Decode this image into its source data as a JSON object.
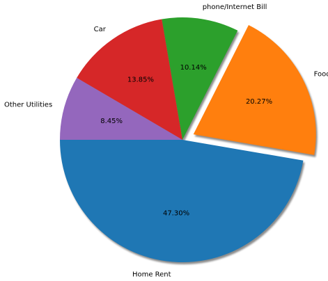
{
  "chart_data": {
    "type": "pie",
    "title": "",
    "start_angle_deg": 180,
    "direction": "counterclockwise",
    "shadow": true,
    "slices": [
      {
        "label": "Home Rent",
        "value": 47.3,
        "pct_label": "47.30%",
        "color": "#1f77b4",
        "explode": 0
      },
      {
        "label": "Food",
        "value": 20.27,
        "pct_label": "20.27%",
        "color": "#ff7f0e",
        "explode": 0.1
      },
      {
        "label": "phone/Internet Bill",
        "value": 10.14,
        "pct_label": "10.14%",
        "color": "#2ca02c",
        "explode": 0
      },
      {
        "label": "Car",
        "value": 13.85,
        "pct_label": "13.85%",
        "color": "#d62728",
        "explode": 0
      },
      {
        "label": "Other Utilities",
        "value": 8.45,
        "pct_label": "8.45%",
        "color": "#9467bd",
        "explode": 0
      }
    ]
  }
}
